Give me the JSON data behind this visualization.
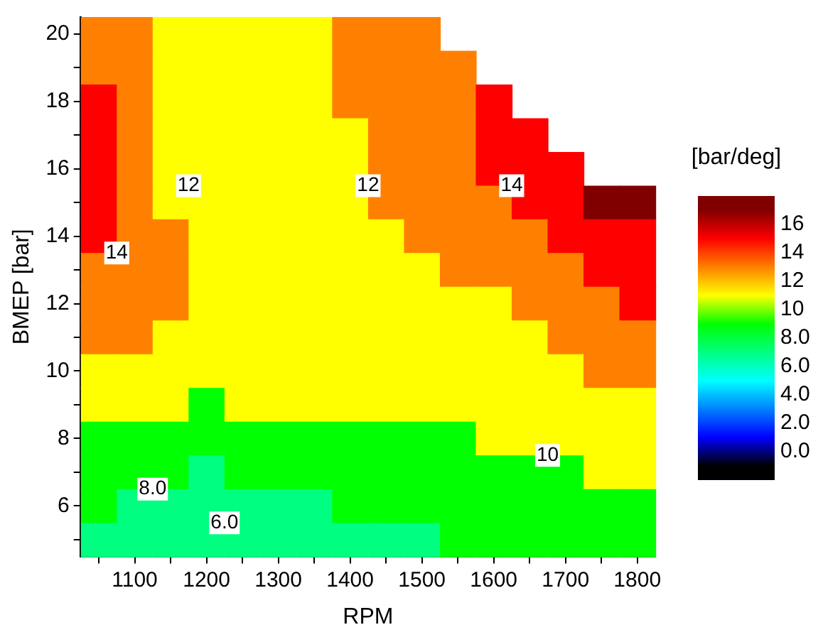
{
  "chart_data": {
    "type": "heatmap",
    "xlabel": "RPM",
    "ylabel": "BMEP [bar]",
    "clabel": "[bar/deg]",
    "categories": [
      null,
      "1100",
      null,
      "1200",
      null,
      "1300",
      null,
      "1400",
      null,
      "1500",
      null,
      "1600",
      null,
      "1700",
      null,
      "1800"
    ],
    "y_categories": [
      "20",
      null,
      "18",
      null,
      "16",
      null,
      "14",
      null,
      "12",
      null,
      "10",
      null,
      "8",
      null,
      "6",
      null
    ],
    "cells": [
      [
        13,
        13,
        11,
        11,
        11,
        11,
        11,
        13,
        13,
        13,
        null,
        null,
        null,
        null,
        null,
        null
      ],
      [
        13,
        13,
        11,
        11,
        11,
        11,
        11,
        13,
        13,
        13,
        13,
        null,
        null,
        null,
        null,
        null
      ],
      [
        15,
        13,
        11,
        11,
        11,
        11,
        11,
        13,
        13,
        13,
        13,
        15,
        null,
        null,
        null,
        null
      ],
      [
        15,
        13,
        11,
        11,
        11,
        11,
        11,
        11,
        13,
        13,
        13,
        15,
        15,
        null,
        null,
        null
      ],
      [
        15,
        13,
        11,
        11,
        11,
        11,
        11,
        11,
        13,
        13,
        13,
        15,
        15,
        15,
        null,
        null
      ],
      [
        15,
        13,
        11,
        11,
        11,
        11,
        11,
        11,
        13,
        13,
        13,
        13,
        15,
        15,
        17,
        17
      ],
      [
        15,
        13,
        13,
        11,
        11,
        11,
        11,
        11,
        11,
        13,
        13,
        13,
        13,
        15,
        15,
        15
      ],
      [
        13,
        13,
        13,
        11,
        11,
        11,
        11,
        11,
        11,
        11,
        13,
        13,
        13,
        13,
        15,
        15
      ],
      [
        13,
        13,
        13,
        11,
        11,
        11,
        11,
        11,
        11,
        11,
        11,
        11,
        13,
        13,
        13,
        15
      ],
      [
        13,
        13,
        11,
        11,
        11,
        11,
        11,
        11,
        11,
        11,
        11,
        11,
        11,
        13,
        13,
        13
      ],
      [
        11,
        11,
        11,
        11,
        11,
        11,
        11,
        11,
        11,
        11,
        11,
        11,
        11,
        11,
        13,
        13
      ],
      [
        11,
        11,
        11,
        9,
        11,
        11,
        11,
        11,
        11,
        11,
        11,
        11,
        11,
        11,
        11,
        11
      ],
      [
        9,
        9,
        9,
        9,
        9,
        9,
        9,
        9,
        9,
        9,
        9,
        11,
        11,
        11,
        11,
        11
      ],
      [
        9,
        9,
        9,
        7,
        9,
        9,
        9,
        9,
        9,
        9,
        9,
        9,
        9,
        9,
        11,
        11
      ],
      [
        9,
        7,
        7,
        7,
        7,
        7,
        7,
        9,
        9,
        9,
        9,
        9,
        9,
        9,
        9,
        9
      ],
      [
        7,
        7,
        7,
        7,
        7,
        7,
        7,
        7,
        7,
        7,
        9,
        9,
        9,
        9,
        9,
        9
      ]
    ],
    "clim": [
      -2,
      18
    ],
    "colors": [
      "#000000",
      "#0000ff",
      "#0080ff",
      "#00ffff",
      "#00ff80",
      "#00ff00",
      "#ffff00",
      "#ff8000",
      "#ff0000",
      "#800000"
    ],
    "cticks": [
      {
        "value": 0,
        "label": "0.0"
      },
      {
        "value": 2,
        "label": "2.0"
      },
      {
        "value": 4,
        "label": "4.0"
      },
      {
        "value": 6,
        "label": "6.0"
      },
      {
        "value": 8,
        "label": "8.0"
      },
      10,
      12,
      14,
      16
    ],
    "annotations": [
      "12",
      "12",
      "14",
      "14",
      "10",
      "8.0",
      "6.0"
    ]
  }
}
